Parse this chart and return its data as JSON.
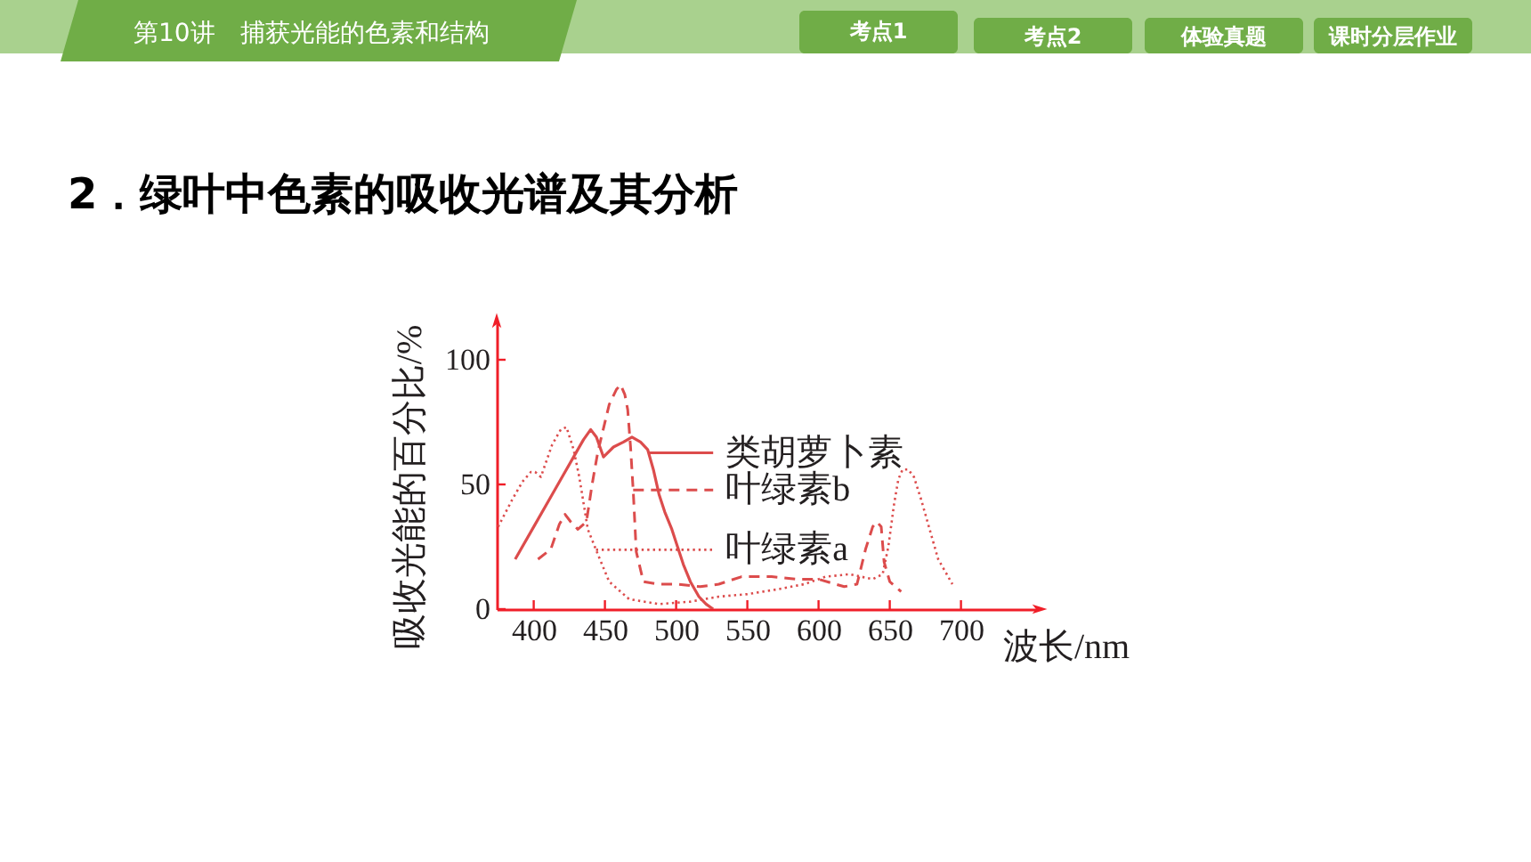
{
  "chart_data": {
    "type": "line",
    "title": "2．绿叶中色素的吸收光谱及其分析",
    "annotations": [
      "第10讲　捕获光能的色素和结构",
      "考点1",
      "考点2",
      "体验真题",
      "课时分层作业"
    ],
    "xlabel": "波长/nm",
    "ylabel": "吸收光能的百分比/%",
    "xlim": [
      374,
      754
    ],
    "ylim": [
      0,
      115
    ],
    "xticks": [
      400,
      450,
      500,
      550,
      600,
      650,
      700
    ],
    "yticks": [
      0,
      50,
      100
    ],
    "legend": "right",
    "series": [
      {
        "name": "类胡萝卜素",
        "color": "#dc4c4c",
        "line_style": "solid",
        "x": [
          387,
          400,
          412,
          421,
          429,
          435,
          440,
          444,
          449,
          456,
          463,
          469,
          475,
          480,
          484,
          488,
          492,
          497,
          505,
          510,
          516,
          521,
          526
        ],
        "values": [
          20,
          33,
          45,
          54,
          62,
          68,
          72,
          69,
          61,
          65,
          67,
          69,
          67,
          64,
          56,
          46,
          39,
          32,
          18,
          11,
          5,
          2,
          0
        ]
      },
      {
        "name": "叶绿素b",
        "color": "#dc4c4c",
        "line_style": "dashed",
        "x": [
          403,
          412,
          418,
          422,
          426,
          431,
          437,
          441,
          445,
          453,
          458,
          461,
          464,
          466,
          468,
          470,
          472,
          477,
          487,
          500,
          517,
          530,
          546,
          567,
          585,
          600,
          612,
          618,
          627,
          633,
          638,
          641,
          644,
          646,
          650,
          658
        ],
        "values": [
          20,
          24,
          34,
          38,
          35,
          32,
          35,
          50,
          63,
          82,
          88,
          90,
          86,
          80,
          65,
          46,
          23,
          11,
          10,
          10,
          9,
          10,
          13,
          13,
          12,
          12,
          10,
          9,
          10,
          24,
          33,
          35,
          33,
          19,
          11,
          7
        ]
      },
      {
        "name": "叶绿素a",
        "color": "#dc4c4c",
        "line_style": "dotted",
        "x": [
          375,
          385,
          392,
          398,
          401,
          405,
          413,
          419,
          423,
          428,
          432,
          438,
          445,
          453,
          467,
          488,
          510,
          530,
          550,
          572,
          590,
          605,
          622,
          638,
          645,
          649,
          653,
          656,
          659,
          663,
          667,
          672,
          684,
          694
        ],
        "values": [
          33,
          44,
          51,
          55,
          55,
          53,
          66,
          72,
          73,
          64,
          53,
          32,
          22,
          11,
          4,
          2,
          3,
          5,
          6,
          8,
          10,
          13,
          14,
          12,
          14,
          25,
          42,
          52,
          56,
          56,
          53,
          44,
          20,
          10
        ]
      }
    ]
  }
}
